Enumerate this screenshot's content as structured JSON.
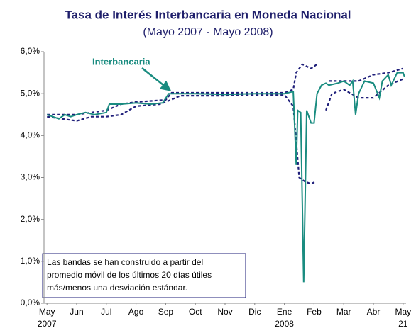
{
  "chart_data": {
    "type": "line",
    "title": "Tasa de Interés Interbancaria en Moneda Nacional",
    "subtitle": "(Mayo 2007 - Mayo 2008)",
    "note": [
      "Las bandas se han construido a partir del",
      "promedio móvil de los últimos 20 días útiles",
      "más/menos una desviación estándar."
    ],
    "xlim": [
      -0.1,
      12.1
    ],
    "xticks": [
      {
        "value": 0,
        "label": [
          "May",
          "2007"
        ]
      },
      {
        "value": 1,
        "label": [
          "Jun"
        ]
      },
      {
        "value": 2,
        "label": [
          "Jul"
        ]
      },
      {
        "value": 3,
        "label": [
          "Ago"
        ]
      },
      {
        "value": 4,
        "label": [
          "Sep"
        ]
      },
      {
        "value": 5,
        "label": [
          "Oct"
        ]
      },
      {
        "value": 6,
        "label": [
          "Nov"
        ]
      },
      {
        "value": 7,
        "label": [
          "Dic"
        ]
      },
      {
        "value": 8,
        "label": [
          "Ene",
          "2008"
        ]
      },
      {
        "value": 9,
        "label": [
          "Feb"
        ]
      },
      {
        "value": 10,
        "label": [
          "Mar"
        ]
      },
      {
        "value": 11,
        "label": [
          "Abr"
        ]
      },
      {
        "value": 12,
        "label": [
          "May",
          "21"
        ]
      }
    ],
    "ylim": [
      0,
      6
    ],
    "yticks": [
      {
        "value": 0,
        "label": "0,0%"
      },
      {
        "value": 1,
        "label": "1,0%"
      },
      {
        "value": 2,
        "label": "2,0%"
      },
      {
        "value": 3,
        "label": "3,0%"
      },
      {
        "value": 4,
        "label": "4,0%"
      },
      {
        "value": 5,
        "label": "5,0%"
      },
      {
        "value": 6,
        "label": "6,0%"
      }
    ],
    "series": [
      {
        "name": "Interbancaria",
        "color": "#1a8c80",
        "style": "solid",
        "x": [
          0,
          0.2,
          0.4,
          0.6,
          0.8,
          1,
          1.3,
          1.6,
          2,
          2.1,
          2.5,
          3,
          3.5,
          3.9,
          4.1,
          4.5,
          5,
          6,
          7,
          8,
          8.3,
          8.4,
          8.45,
          8.55,
          8.65,
          8.75,
          8.9,
          9.0,
          9.1,
          9.25,
          9.4,
          9.5,
          9.8,
          10,
          10.2,
          10.3,
          10.4,
          10.5,
          10.7,
          11,
          11.2,
          11.3,
          11.5,
          11.6,
          11.8,
          12,
          12.05
        ],
        "values": [
          4.5,
          4.45,
          4.4,
          4.5,
          4.45,
          4.5,
          4.55,
          4.5,
          4.55,
          4.75,
          4.75,
          4.78,
          4.75,
          4.78,
          5.0,
          5.0,
          5.0,
          4.98,
          5.0,
          5.0,
          5.05,
          3.3,
          4.6,
          4.55,
          0.5,
          4.6,
          4.3,
          4.3,
          5.0,
          5.2,
          5.25,
          5.2,
          5.25,
          5.3,
          5.2,
          5.3,
          4.5,
          5.0,
          5.3,
          5.25,
          4.9,
          5.3,
          5.45,
          5.2,
          5.5,
          5.5,
          5.4
        ]
      },
      {
        "color": "#1f1f7a",
        "style": "dashed",
        "x": [
          0,
          1,
          2,
          2.5,
          3,
          4,
          4.2,
          5,
          6,
          7,
          8,
          8.3,
          8.4,
          8.6,
          8.9,
          9.1,
          9.2,
          9.5,
          10,
          10.5,
          11,
          11.5,
          12
        ],
        "values": [
          4.5,
          4.5,
          4.6,
          4.75,
          4.8,
          4.85,
          5.02,
          5.02,
          5.02,
          5.02,
          5.02,
          5.1,
          5.5,
          5.7,
          5.6,
          5.7,
          null,
          5.3,
          5.3,
          5.3,
          5.45,
          5.5,
          5.6
        ]
      },
      {
        "color": "#1f1f7a",
        "style": "dashed",
        "x": [
          0,
          1,
          1.5,
          2,
          2.5,
          3,
          3.8,
          4,
          4.5,
          5,
          6,
          7,
          8,
          8.3,
          8.5,
          8.7,
          8.9,
          9.05,
          9.1,
          9.4,
          9.6,
          10,
          10.5,
          11,
          11.5,
          12
        ],
        "values": [
          4.45,
          4.35,
          4.45,
          4.45,
          4.5,
          4.7,
          4.75,
          4.8,
          4.95,
          4.95,
          4.95,
          4.97,
          4.97,
          4.7,
          3.0,
          2.9,
          2.85,
          2.9,
          null,
          4.6,
          5.0,
          5.1,
          4.9,
          4.9,
          5.2,
          5.35
        ]
      }
    ]
  }
}
